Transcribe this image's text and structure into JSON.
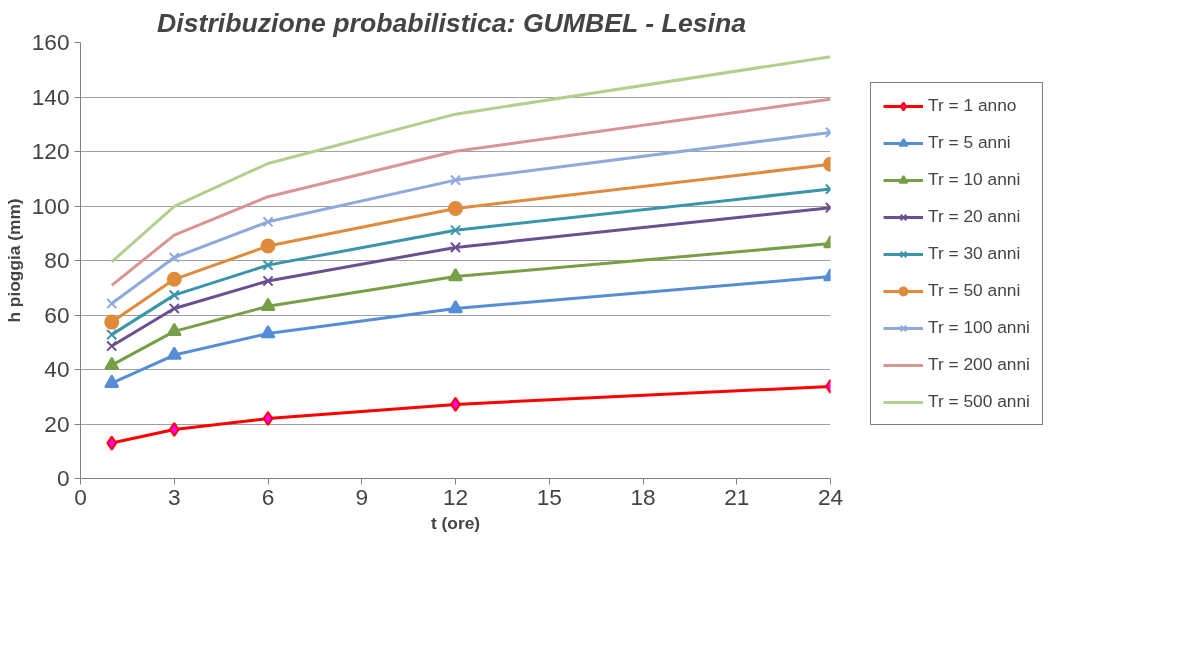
{
  "chart_data": {
    "type": "line",
    "title": "Distribuzione probabilistica:  GUMBEL - Lesina",
    "xlabel": "t (ore)",
    "ylabel": "h pioggia (mm)",
    "x": [
      1,
      3,
      6,
      12,
      24
    ],
    "xlim": [
      0,
      24
    ],
    "xticks": [
      0,
      3,
      6,
      9,
      12,
      15,
      18,
      21,
      24
    ],
    "ylim": [
      0,
      160
    ],
    "yticks": [
      0,
      20,
      40,
      60,
      80,
      100,
      120,
      140,
      160
    ],
    "grid": "y",
    "legend": "right",
    "series": [
      {
        "name": "Tr = 1 anno",
        "color": "#ff0000",
        "marker": "diamond",
        "values": [
          13,
          18,
          22,
          27.2,
          33.8
        ]
      },
      {
        "name": "Tr = 5 anni",
        "color": "#558ed5",
        "marker": "triangle",
        "values": [
          35,
          45.3,
          53.2,
          62.4,
          74.1
        ]
      },
      {
        "name": "Tr = 10 anni",
        "color": "#77a046",
        "marker": "triangle",
        "values": [
          41.6,
          54,
          63.2,
          74.1,
          86.2
        ]
      },
      {
        "name": "Tr = 20 anni",
        "color": "#6a5090",
        "marker": "cross",
        "values": [
          48.6,
          62.4,
          72.5,
          84.8,
          99.4
        ]
      },
      {
        "name": "Tr = 30 anni",
        "color": "#3a95aa",
        "marker": "cross",
        "values": [
          52.8,
          67.3,
          78.3,
          91.1,
          106.2
        ]
      },
      {
        "name": "Tr = 50 anni",
        "color": "#e08a3c",
        "marker": "circle",
        "values": [
          57.4,
          73.1,
          85.3,
          99.1,
          115.3
        ]
      },
      {
        "name": "Tr = 100 anni",
        "color": "#8eaadb",
        "marker": "cross",
        "values": [
          64.2,
          81.1,
          94.2,
          109.5,
          127
        ]
      },
      {
        "name": "Tr = 200 anni",
        "color": "#d99594",
        "marker": "none",
        "values": [
          70.9,
          89.3,
          103.4,
          120.1,
          139.2
        ]
      },
      {
        "name": "Tr = 500 anni",
        "color": "#b3cf8e",
        "marker": "none",
        "values": [
          79.5,
          99.9,
          115.6,
          133.7,
          154.8
        ]
      }
    ]
  }
}
